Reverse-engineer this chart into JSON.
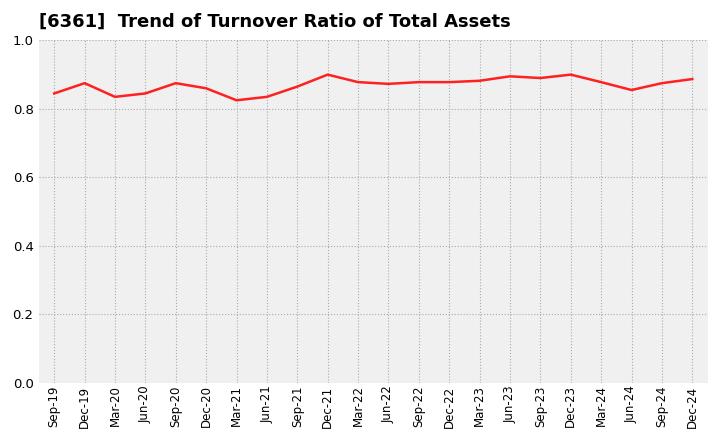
{
  "title": "[6361]  Trend of Turnover Ratio of Total Assets",
  "title_fontsize": 13,
  "line_color": "#FF2020",
  "line_width": 1.8,
  "background_color": "#FFFFFF",
  "plot_bg_color": "#F0F0F0",
  "grid_color": "#AAAAAA",
  "grid_linestyle": ":",
  "ylim": [
    0.0,
    1.0
  ],
  "yticks": [
    0.0,
    0.2,
    0.4,
    0.6,
    0.8,
    1.0
  ],
  "x_labels": [
    "Sep-19",
    "Dec-19",
    "Mar-20",
    "Jun-20",
    "Sep-20",
    "Dec-20",
    "Mar-21",
    "Jun-21",
    "Sep-21",
    "Dec-21",
    "Mar-22",
    "Jun-22",
    "Sep-22",
    "Dec-22",
    "Mar-23",
    "Jun-23",
    "Sep-23",
    "Dec-23",
    "Mar-24",
    "Jun-24",
    "Sep-24",
    "Dec-24"
  ],
  "values": [
    0.845,
    0.875,
    0.835,
    0.845,
    0.875,
    0.86,
    0.825,
    0.835,
    0.865,
    0.9,
    0.878,
    0.873,
    0.878,
    0.878,
    0.882,
    0.895,
    0.89,
    0.9,
    0.878,
    0.855,
    0.875,
    0.887
  ]
}
